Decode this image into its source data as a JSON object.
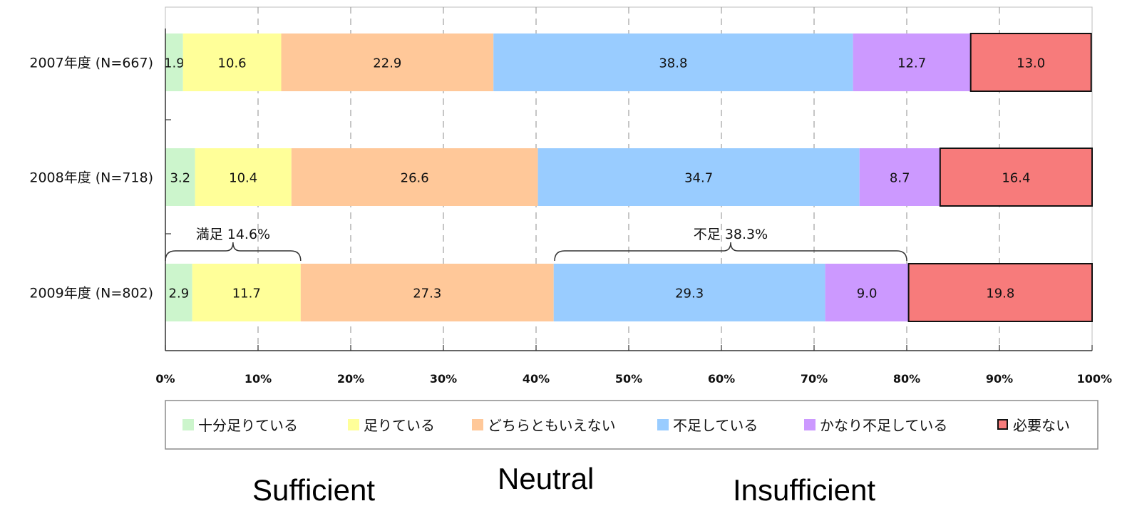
{
  "chart_data": {
    "type": "bar",
    "orientation": "horizontal-stacked-100",
    "categories": [
      "2007年度 (N=667)",
      "2008年度 (N=718)",
      "2009年度 (N=802)"
    ],
    "series": [
      {
        "name": "十分足りている",
        "color": "#ccf5cc",
        "values": [
          1.9,
          3.2,
          2.9
        ],
        "labels": [
          "1.9",
          "3.2",
          "2.9"
        ]
      },
      {
        "name": "足りている",
        "color": "#ffff99",
        "values": [
          10.6,
          10.4,
          11.7
        ],
        "labels": [
          "10.6",
          "10.4",
          "11.7"
        ]
      },
      {
        "name": "どちらともいえない",
        "color": "#ffc899",
        "values": [
          22.9,
          26.6,
          27.3
        ],
        "labels": [
          "22.9",
          "26.6",
          "27.3"
        ]
      },
      {
        "name": "不足している",
        "color": "#99ccff",
        "values": [
          38.8,
          34.7,
          29.3
        ],
        "labels": [
          "38.8",
          "34.7",
          "29.3"
        ]
      },
      {
        "name": "かなり不足している",
        "color": "#cc99ff",
        "values": [
          12.7,
          8.7,
          9.0
        ],
        "labels": [
          "12.7",
          "8.7",
          "9.0"
        ]
      },
      {
        "name": "必要ない",
        "color": "#f77b7b",
        "values": [
          13.0,
          16.4,
          19.8
        ],
        "labels": [
          "13.0",
          "16.4",
          "19.8"
        ],
        "outlined": true
      }
    ],
    "xlim": [
      0,
      100
    ],
    "x_ticks": [
      "0%",
      "10%",
      "20%",
      "30%",
      "40%",
      "50%",
      "60%",
      "70%",
      "80%",
      "90%",
      "100%"
    ],
    "grid": "vertical-dashed",
    "legend_position": "bottom",
    "annotations": [
      {
        "text": "満足  14.6%",
        "category": "2009年度 (N=802)",
        "from": 0,
        "to": 14.6
      },
      {
        "text": "不足  38.3%",
        "category": "2009年度 (N=802)",
        "from": 42,
        "to": 80
      }
    ]
  },
  "captions": {
    "sufficient": "Sufficient",
    "neutral": "Neutral",
    "insufficient": "Insufficient"
  }
}
